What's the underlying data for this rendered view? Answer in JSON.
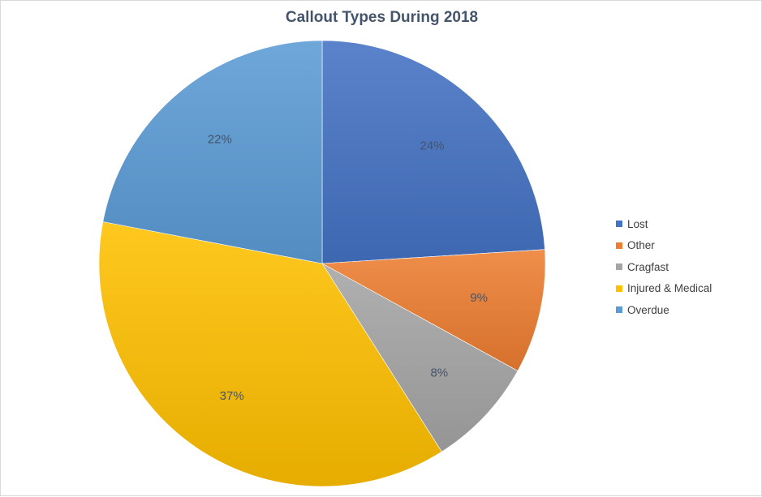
{
  "chart_data": {
    "type": "pie",
    "title": "Callout Types During 2018",
    "categories": [
      "Lost",
      "Other",
      "Cragfast",
      "Injured & Medical",
      "Overdue"
    ],
    "values": [
      24,
      9,
      8,
      37,
      22
    ],
    "data_labels": [
      "24%",
      "9%",
      "8%",
      "37%",
      "22%"
    ],
    "colors": [
      "#4472c4",
      "#ed7d31",
      "#a5a5a5",
      "#ffc000",
      "#5b9bd5"
    ],
    "legend_position": "right"
  }
}
